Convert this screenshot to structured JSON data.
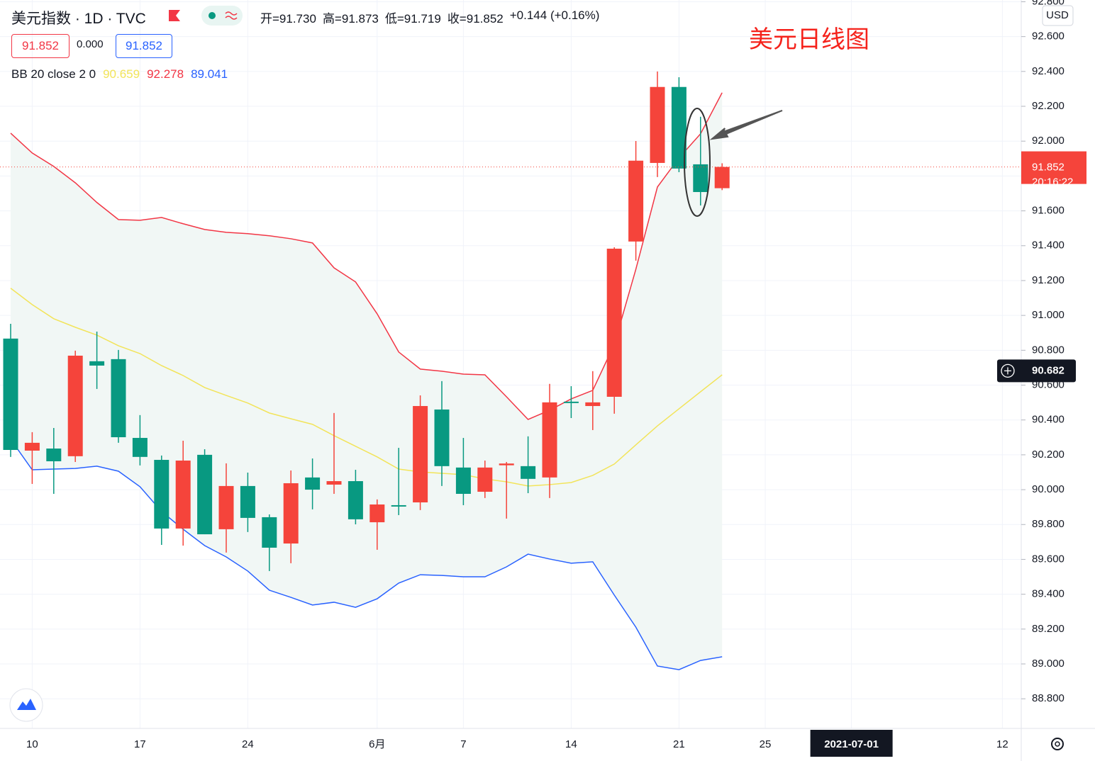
{
  "header": {
    "title": "美元指数 · 1D · TVC",
    "ohlc": [
      "开=91.730",
      "高=91.873",
      "低=91.719",
      "收=91.852",
      "+0.144 (+0.16%)"
    ],
    "bid": "91.852",
    "spread": "0.000",
    "ask": "91.852"
  },
  "indicator": {
    "name": "BB 20 close 2 0",
    "values": [
      "90.659",
      "92.278",
      "89.041"
    ]
  },
  "annotation": "美元日线图",
  "chart_data": {
    "type": "candlestick",
    "categories": [
      null,
      "10",
      null,
      null,
      null,
      null,
      "17",
      null,
      null,
      null,
      null,
      "24",
      null,
      null,
      null,
      null,
      null,
      "6月",
      null,
      null,
      null,
      "7",
      null,
      null,
      null,
      null,
      "14",
      null,
      null,
      null,
      null,
      "21",
      null,
      null,
      null,
      "25",
      null,
      null,
      null,
      "2021-07-01",
      null,
      null,
      null,
      null,
      null,
      null,
      "12"
    ],
    "open": [
      90.867,
      90.224,
      90.236,
      90.192,
      90.737,
      90.749,
      90.297,
      90.171,
      89.777,
      90.2,
      89.773,
      90.021,
      89.842,
      89.691,
      90.07,
      90.029,
      90.049,
      89.813,
      89.911,
      89.927,
      90.46,
      90.127,
      89.988,
      90.14,
      90.135,
      90.07,
      90.505,
      90.48,
      90.533,
      91.424,
      91.875,
      92.311,
      91.867,
      91.73,
      null,
      null,
      null,
      null,
      null,
      null,
      null,
      null,
      null,
      null,
      null,
      null,
      null
    ],
    "high": [
      90.952,
      90.33,
      90.354,
      90.798,
      90.907,
      90.802,
      90.428,
      90.196,
      90.281,
      90.232,
      90.151,
      90.098,
      89.858,
      90.11,
      90.179,
      90.44,
      90.114,
      89.944,
      90.24,
      90.541,
      90.623,
      90.297,
      90.167,
      90.159,
      90.306,
      90.607,
      90.594,
      90.68,
      91.391,
      92.001,
      92.4,
      92.367,
      92.14,
      91.873,
      null,
      null,
      null,
      null,
      null,
      null,
      null,
      null,
      null,
      null,
      null,
      null,
      null
    ],
    "low": [
      90.188,
      90.033,
      89.976,
      90.159,
      90.578,
      90.269,
      90.139,
      89.683,
      89.679,
      89.744,
      89.639,
      89.757,
      89.533,
      89.578,
      89.887,
      89.976,
      89.801,
      89.655,
      89.854,
      89.883,
      90.021,
      89.911,
      89.952,
      89.834,
      89.98,
      89.952,
      90.411,
      90.342,
      90.436,
      91.314,
      91.794,
      91.822,
      91.631,
      91.719,
      null,
      null,
      null,
      null,
      null,
      null,
      null,
      null,
      null,
      null,
      null,
      null,
      null
    ],
    "close": [
      90.228,
      90.269,
      90.163,
      90.769,
      90.712,
      90.301,
      90.188,
      89.777,
      90.167,
      89.744,
      90.021,
      89.838,
      89.667,
      90.037,
      90.0,
      90.049,
      89.83,
      89.915,
      89.903,
      90.48,
      90.135,
      89.976,
      90.127,
      90.15,
      90.062,
      90.501,
      90.497,
      90.501,
      91.383,
      91.888,
      92.311,
      91.843,
      91.708,
      91.852,
      null,
      null,
      null,
      null,
      null,
      null,
      null,
      null,
      null,
      null,
      null,
      null,
      null
    ],
    "up_color": "#f5443b",
    "down_color": "#089981",
    "overlays": [
      {
        "color": "#f2e45a",
        "values": [
          91.156,
          91.062,
          90.981,
          90.932,
          90.887,
          90.826,
          90.781,
          90.712,
          90.655,
          90.586,
          90.541,
          90.497,
          90.44,
          90.407,
          90.375,
          90.31,
          90.249,
          90.188,
          90.118,
          90.102,
          90.094,
          90.086,
          90.062,
          90.045,
          90.021,
          90.029,
          90.041,
          90.082,
          90.147,
          90.257,
          90.366,
          90.464,
          90.562,
          90.659,
          null,
          null,
          null,
          null,
          null,
          null,
          null,
          null,
          null,
          null,
          null,
          null,
          null
        ]
      },
      {
        "color": "#f23645",
        "values": [
          92.046,
          91.932,
          91.855,
          91.761,
          91.648,
          91.55,
          91.546,
          91.562,
          91.526,
          91.493,
          91.477,
          91.469,
          91.457,
          91.44,
          91.416,
          91.273,
          91.192,
          91.009,
          90.79,
          90.692,
          90.68,
          90.663,
          90.659,
          90.533,
          90.403,
          90.456,
          90.521,
          90.57,
          90.834,
          91.265,
          91.737,
          91.904,
          92.042,
          92.278,
          null,
          null,
          null,
          null,
          null,
          null,
          null,
          null,
          null,
          null,
          null,
          null,
          null
        ]
      },
      {
        "color": "#2962ff",
        "values": [
          90.289,
          90.114,
          90.118,
          90.122,
          90.135,
          90.106,
          90.017,
          89.875,
          89.773,
          89.679,
          89.614,
          89.533,
          89.423,
          89.382,
          89.338,
          89.354,
          89.325,
          89.374,
          89.464,
          89.512,
          89.508,
          89.5,
          89.5,
          89.557,
          89.63,
          89.602,
          89.578,
          89.586,
          89.395,
          89.211,
          88.988,
          88.967,
          89.02,
          89.041,
          null,
          null,
          null,
          null,
          null,
          null,
          null,
          null,
          null,
          null,
          null,
          null,
          null
        ]
      }
    ],
    "band_fill": "#f1f7f5",
    "ylim": [
      88.63,
      92.81
    ],
    "yticks": [
      {
        "value": 88.8,
        "label": "88.800"
      },
      {
        "value": 89.0,
        "label": "89.000"
      },
      {
        "value": 89.2,
        "label": "89.200"
      },
      {
        "value": 89.4,
        "label": "89.400"
      },
      {
        "value": 89.6,
        "label": "89.600"
      },
      {
        "value": 89.8,
        "label": "89.800"
      },
      {
        "value": 90.0,
        "label": "90.000"
      },
      {
        "value": 90.2,
        "label": "90.200"
      },
      {
        "value": 90.4,
        "label": "90.400"
      },
      {
        "value": 90.6,
        "label": "90.600"
      },
      {
        "value": 90.8,
        "label": "90.800"
      },
      {
        "value": 91.0,
        "label": "91.000"
      },
      {
        "value": 91.2,
        "label": "91.200"
      },
      {
        "value": 91.4,
        "label": "91.400"
      },
      {
        "value": 91.6,
        "label": "91.600"
      },
      {
        "value": 91.8,
        "label": "91.800"
      },
      {
        "value": 92.0,
        "label": "92.000"
      },
      {
        "value": 92.2,
        "label": "92.200"
      },
      {
        "value": 92.4,
        "label": "92.400"
      },
      {
        "value": 92.6,
        "label": "92.600"
      },
      {
        "value": 92.8,
        "label": "92.800"
      }
    ],
    "grid": true,
    "last_price": {
      "label": "91.852",
      "countdown": "20:16:22"
    },
    "crosshair": {
      "value": 90.682,
      "label": "90.682",
      "category_index": 39
    },
    "currency": "USD"
  }
}
